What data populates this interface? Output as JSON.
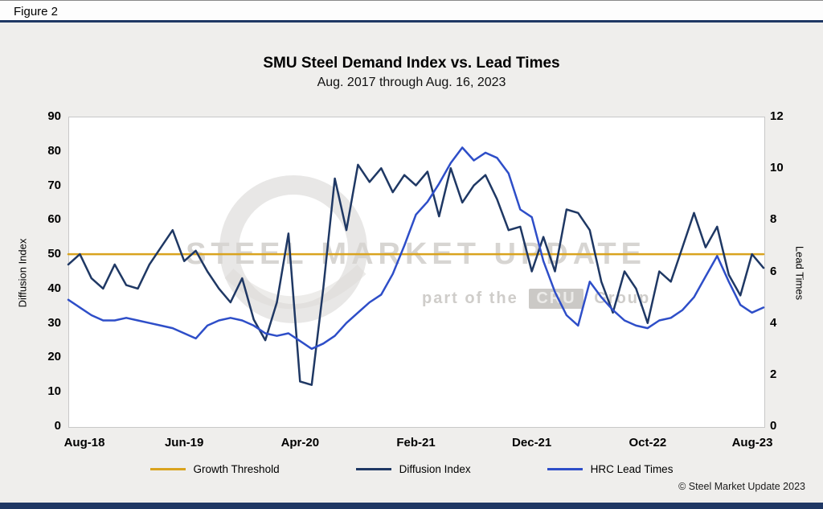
{
  "figure_label": "Figure 2",
  "copyright": "© Steel Market Update 2023",
  "colors": {
    "accent_navy": "#1F3864",
    "page_background": "#EFEEEC",
    "plot_background": "#FFFFFF"
  },
  "watermark": {
    "main": "STEEL MARKET UPDATE",
    "part_prefix": "part of the",
    "box": "CRU",
    "suffix": "Group"
  },
  "chart_data": {
    "type": "line",
    "title": "SMU Steel Demand Index vs. Lead Times",
    "subtitle": "Aug. 2017 through Aug. 16, 2023",
    "grid": "off",
    "legend_position": "bottom",
    "x_ticks": [
      "Aug-18",
      "Jun-19",
      "Apr-20",
      "Feb-21",
      "Dec-21",
      "Oct-22",
      "Aug-23"
    ],
    "x_frequency": "monthly",
    "y_left": {
      "label": "Diffusion Index",
      "min": 0,
      "max": 90,
      "ticks": [
        0,
        10,
        20,
        30,
        40,
        50,
        60,
        70,
        80,
        90
      ]
    },
    "y_right": {
      "label": "Lead Times",
      "min": 0,
      "max": 12,
      "ticks": [
        0,
        2,
        4,
        6,
        8,
        10,
        12
      ]
    },
    "series": [
      {
        "name": "Growth Threshold",
        "axis": "left",
        "color": "#D9A31E",
        "constant": 50
      },
      {
        "name": "Diffusion Index",
        "axis": "left",
        "color": "#1F3864",
        "values": [
          47,
          50,
          43,
          40,
          47,
          41,
          40,
          47,
          52,
          57,
          48,
          51,
          45,
          40,
          36,
          43,
          31,
          25,
          36,
          56,
          13,
          12,
          40,
          72,
          57,
          76,
          71,
          75,
          68,
          73,
          70,
          74,
          61,
          75,
          65,
          70,
          73,
          66,
          57,
          58,
          45,
          55,
          45,
          63,
          62,
          57,
          42,
          33,
          45,
          40,
          30,
          45,
          42,
          52,
          62,
          52,
          58,
          44,
          38,
          50,
          46
        ]
      },
      {
        "name": "HRC Lead Times",
        "axis": "right",
        "color": "#2E4EC8",
        "values": [
          4.9,
          4.6,
          4.3,
          4.1,
          4.1,
          4.2,
          4.1,
          4.0,
          3.9,
          3.8,
          3.6,
          3.4,
          3.9,
          4.1,
          4.2,
          4.1,
          3.9,
          3.6,
          3.5,
          3.6,
          3.3,
          3.0,
          3.2,
          3.5,
          4.0,
          4.4,
          4.8,
          5.1,
          5.9,
          7.0,
          8.2,
          8.7,
          9.4,
          10.2,
          10.8,
          10.3,
          10.6,
          10.4,
          9.8,
          8.4,
          8.1,
          6.4,
          5.2,
          4.3,
          3.9,
          5.6,
          5.0,
          4.5,
          4.1,
          3.9,
          3.8,
          4.1,
          4.2,
          4.5,
          5.0,
          5.8,
          6.6,
          5.6,
          4.7,
          4.4,
          4.6
        ]
      }
    ]
  }
}
